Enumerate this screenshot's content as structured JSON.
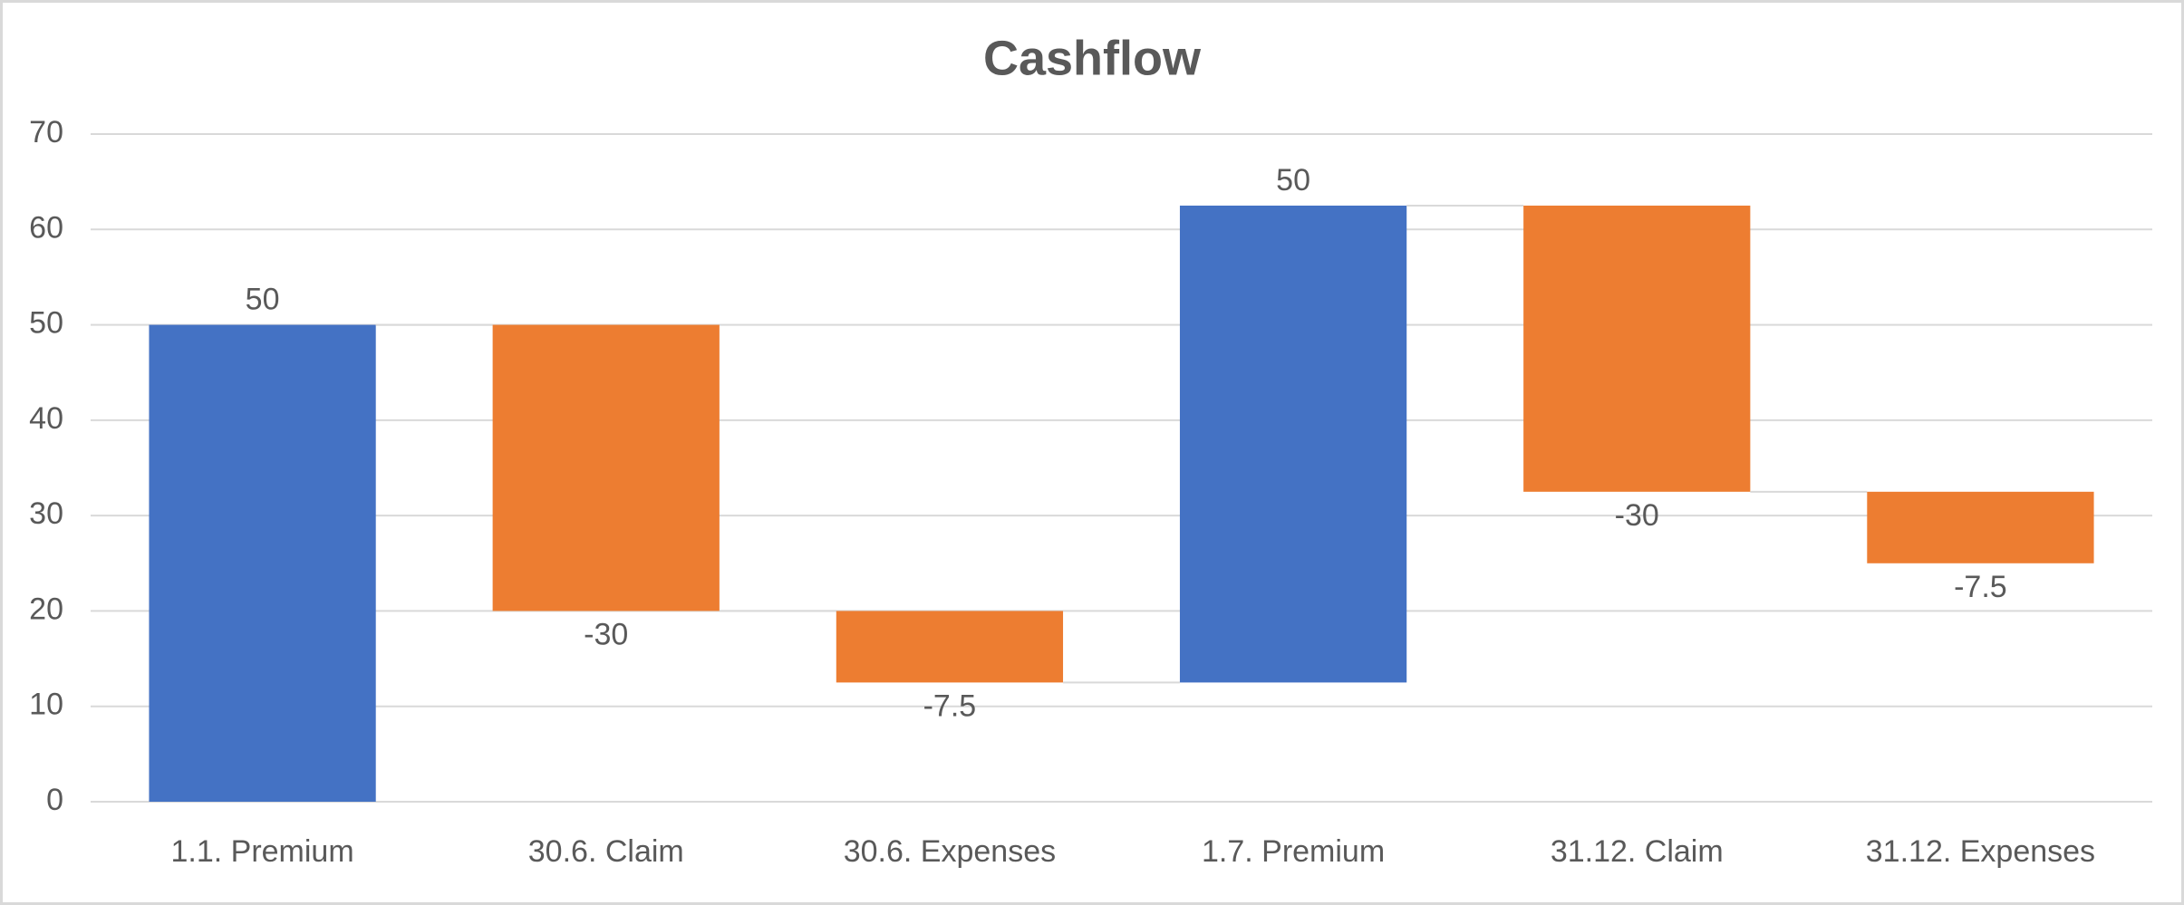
{
  "chart_data": {
    "type": "waterfall",
    "title": "Cashflow",
    "categories": [
      "1.1. Premium",
      "30.6. Claim",
      "30.6. Expenses",
      "1.7. Premium",
      "31.12. Claim",
      "31.12. Expenses"
    ],
    "values": [
      50,
      -30,
      -7.5,
      50,
      -30,
      -7.5
    ],
    "increase_color": "#4472c4",
    "decrease_color": "#ed7d31",
    "ylim": [
      0,
      70
    ],
    "yticks": [
      0,
      10,
      20,
      30,
      40,
      50,
      60,
      70
    ],
    "grid": true
  }
}
